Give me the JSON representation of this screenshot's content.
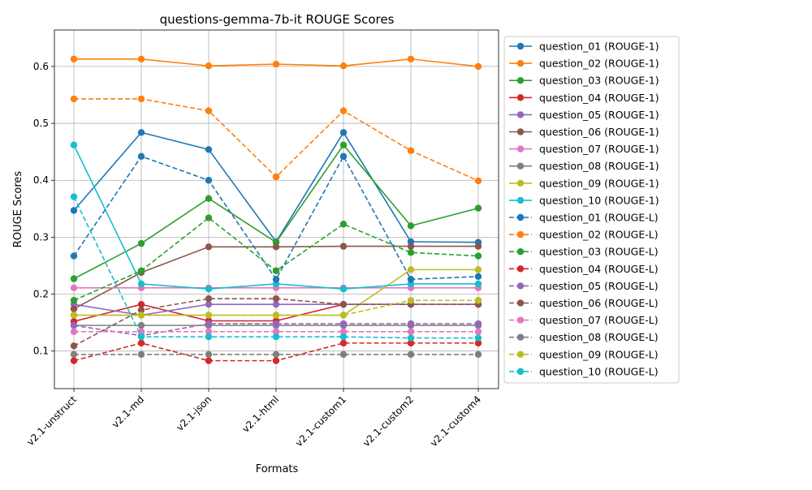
{
  "chart_data": {
    "type": "line",
    "title": "questions-gemma-7b-it ROUGE Scores",
    "xlabel": "Formats",
    "ylabel": "ROUGE Scores",
    "categories": [
      "v2.1-unstruct",
      "v2.1-md",
      "v2.1-json",
      "v2.1-html",
      "v2.1-custom1",
      "v2.1-custom2",
      "v2.1-custom4"
    ],
    "ylim": [
      0.034,
      0.664
    ],
    "yticks": [
      "0.1",
      "0.2",
      "0.3",
      "0.4",
      "0.5",
      "0.6"
    ],
    "grid": true,
    "legend_position": "outside-right",
    "series": [
      {
        "name": "question_01 (ROUGE-1)",
        "color": "#1f77b4",
        "dash": false,
        "values": [
          0.347,
          0.484,
          0.454,
          0.292,
          0.484,
          0.292,
          0.291
        ]
      },
      {
        "name": "question_02 (ROUGE-1)",
        "color": "#ff7f0e",
        "dash": false,
        "values": [
          0.613,
          0.613,
          0.601,
          0.604,
          0.601,
          0.613,
          0.6
        ]
      },
      {
        "name": "question_03 (ROUGE-1)",
        "color": "#2ca02c",
        "dash": false,
        "values": [
          0.227,
          0.289,
          0.368,
          0.291,
          0.462,
          0.32,
          0.351
        ]
      },
      {
        "name": "question_04 (ROUGE-1)",
        "color": "#d62728",
        "dash": false,
        "values": [
          0.152,
          0.182,
          0.153,
          0.153,
          0.182,
          0.182,
          0.182
        ]
      },
      {
        "name": "question_05 (ROUGE-1)",
        "color": "#9467bd",
        "dash": false,
        "values": [
          0.182,
          0.163,
          0.182,
          0.182,
          0.182,
          0.182,
          0.182
        ]
      },
      {
        "name": "question_06 (ROUGE-1)",
        "color": "#8c564b",
        "dash": false,
        "values": [
          0.174,
          0.238,
          0.283,
          0.283,
          0.284,
          0.284,
          0.284
        ]
      },
      {
        "name": "question_07 (ROUGE-1)",
        "color": "#e377c2",
        "dash": false,
        "values": [
          0.211,
          0.211,
          0.211,
          0.211,
          0.211,
          0.211,
          0.211
        ]
      },
      {
        "name": "question_08 (ROUGE-1)",
        "color": "#7f7f7f",
        "dash": false,
        "values": [
          0.145,
          0.145,
          0.145,
          0.145,
          0.145,
          0.145,
          0.145
        ]
      },
      {
        "name": "question_09 (ROUGE-1)",
        "color": "#bcbd22",
        "dash": false,
        "values": [
          0.163,
          0.163,
          0.163,
          0.163,
          0.163,
          0.243,
          0.243
        ]
      },
      {
        "name": "question_10 (ROUGE-1)",
        "color": "#17becf",
        "dash": false,
        "values": [
          0.462,
          0.218,
          0.209,
          0.218,
          0.209,
          0.218,
          0.218
        ]
      },
      {
        "name": "question_01 (ROUGE-L)",
        "color": "#1f77b4",
        "dash": true,
        "values": [
          0.267,
          0.442,
          0.4,
          0.226,
          0.442,
          0.226,
          0.231
        ]
      },
      {
        "name": "question_02 (ROUGE-L)",
        "color": "#ff7f0e",
        "dash": true,
        "values": [
          0.543,
          0.543,
          0.522,
          0.406,
          0.522,
          0.452,
          0.399
        ]
      },
      {
        "name": "question_03 (ROUGE-L)",
        "color": "#2ca02c",
        "dash": true,
        "values": [
          0.189,
          0.241,
          0.334,
          0.241,
          0.323,
          0.273,
          0.267
        ]
      },
      {
        "name": "question_04 (ROUGE-L)",
        "color": "#d62728",
        "dash": true,
        "values": [
          0.083,
          0.114,
          0.083,
          0.083,
          0.114,
          0.114,
          0.114
        ]
      },
      {
        "name": "question_05 (ROUGE-L)",
        "color": "#9467bd",
        "dash": true,
        "values": [
          0.145,
          0.127,
          0.148,
          0.148,
          0.148,
          0.148,
          0.148
        ]
      },
      {
        "name": "question_06 (ROUGE-L)",
        "color": "#8c564b",
        "dash": true,
        "values": [
          0.109,
          0.172,
          0.192,
          0.192,
          0.182,
          0.182,
          0.182
        ]
      },
      {
        "name": "question_07 (ROUGE-L)",
        "color": "#e377c2",
        "dash": true,
        "values": [
          0.134,
          0.134,
          0.134,
          0.134,
          0.134,
          0.134,
          0.134
        ]
      },
      {
        "name": "question_08 (ROUGE-L)",
        "color": "#7f7f7f",
        "dash": true,
        "values": [
          0.094,
          0.094,
          0.094,
          0.094,
          0.094,
          0.094,
          0.094
        ]
      },
      {
        "name": "question_09 (ROUGE-L)",
        "color": "#bcbd22",
        "dash": true,
        "values": [
          0.163,
          0.163,
          0.163,
          0.163,
          0.163,
          0.189,
          0.189
        ]
      },
      {
        "name": "question_10 (ROUGE-L)",
        "color": "#17becf",
        "dash": true,
        "values": [
          0.371,
          0.125,
          0.125,
          0.125,
          0.125,
          0.123,
          0.123
        ]
      }
    ]
  }
}
